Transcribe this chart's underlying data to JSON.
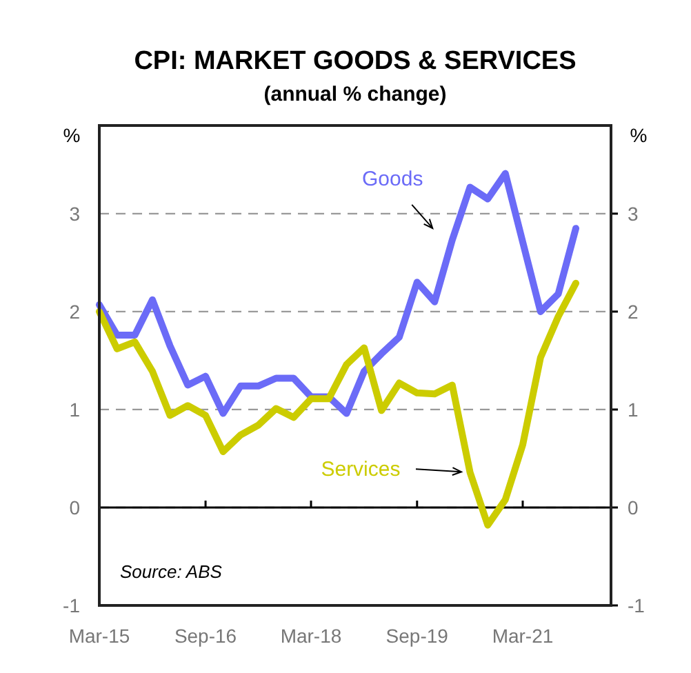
{
  "chart_data": {
    "type": "line",
    "title": "CPI: MARKET GOODS & SERVICES",
    "subtitle": "(annual % change)",
    "ylabel": "%",
    "y2label": "%",
    "x": [
      "2015-03",
      "2015-06",
      "2015-09",
      "2015-12",
      "2016-03",
      "2016-06",
      "2016-09",
      "2016-12",
      "2017-03",
      "2017-06",
      "2017-09",
      "2017-12",
      "2018-03",
      "2018-06",
      "2018-09",
      "2018-12",
      "2019-03",
      "2019-06",
      "2019-09",
      "2019-12",
      "2020-03",
      "2020-06",
      "2020-09",
      "2020-12",
      "2021-03",
      "2021-06",
      "2021-09",
      "2021-12"
    ],
    "series": [
      {
        "name": "Goods",
        "color": "#6b6bf7",
        "values": [
          2.07,
          1.76,
          1.76,
          2.12,
          1.65,
          1.25,
          1.34,
          0.96,
          1.24,
          1.24,
          1.32,
          1.32,
          1.13,
          1.13,
          0.96,
          1.39,
          1.57,
          1.74,
          2.3,
          2.1,
          2.73,
          3.27,
          3.15,
          3.41,
          2.71,
          2.0,
          2.18,
          2.85
        ]
      },
      {
        "name": "Services",
        "color": "#cccc00",
        "values": [
          2.0,
          1.62,
          1.69,
          1.39,
          0.94,
          1.04,
          0.94,
          0.57,
          0.74,
          0.84,
          1.01,
          0.92,
          1.11,
          1.11,
          1.46,
          1.63,
          0.99,
          1.27,
          1.17,
          1.16,
          1.25,
          0.36,
          -0.18,
          0.08,
          0.64,
          1.53,
          1.95,
          2.29
        ]
      }
    ],
    "xlim": [
      "2015-03",
      "2022-06"
    ],
    "xticks": [
      {
        "value": "2015-03",
        "label": "Mar-15"
      },
      {
        "value": "2016-09",
        "label": "Sep-16"
      },
      {
        "value": "2018-03",
        "label": "Mar-18"
      },
      {
        "value": "2019-09",
        "label": "Sep-19"
      },
      {
        "value": "2021-03",
        "label": "Mar-21"
      }
    ],
    "ylim": [
      -1,
      3.9
    ],
    "yticks": [
      -1,
      0,
      1,
      2,
      3
    ],
    "y2lim": [
      -1,
      3.9
    ],
    "y2ticks": [
      -1,
      0,
      1,
      2,
      3
    ],
    "grid": "y",
    "marker": "none",
    "line_style": "solid",
    "annotations": [
      "Source: ABS"
    ]
  }
}
